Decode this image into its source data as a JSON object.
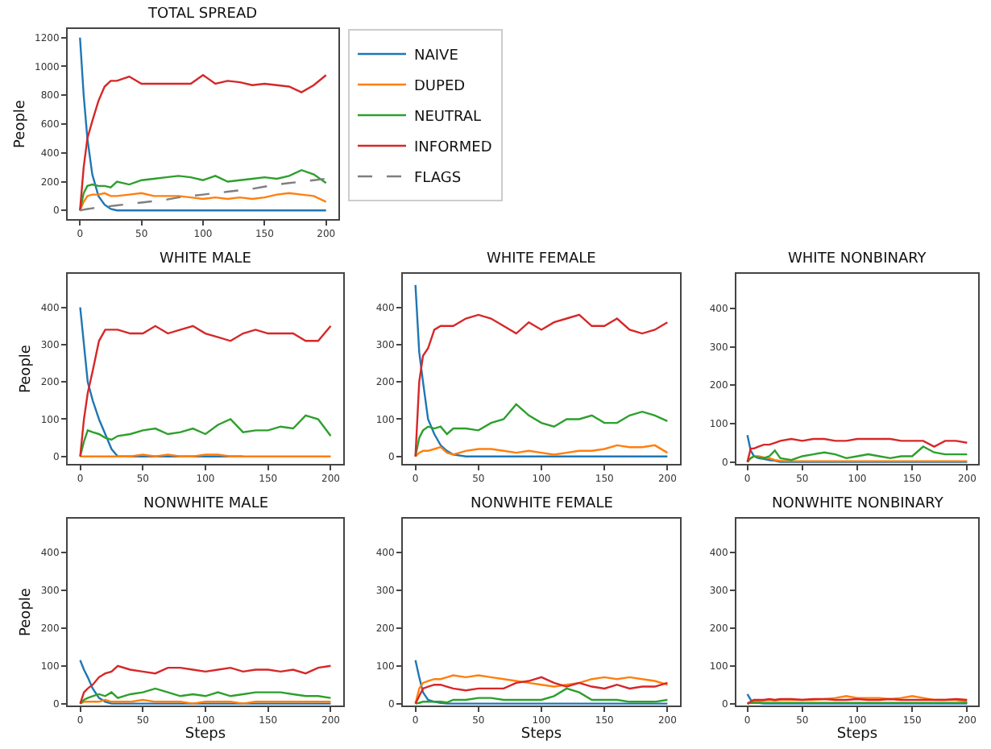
{
  "chart_data": [
    {
      "type": "line",
      "title": "TOTAL SPREAD",
      "ylabel": "People",
      "legend": "right",
      "grid": false,
      "marker": "none",
      "x": [
        0,
        3,
        6,
        10,
        15,
        20,
        25,
        30,
        40,
        50,
        60,
        70,
        80,
        90,
        100,
        110,
        120,
        130,
        140,
        150,
        160,
        170,
        180,
        190,
        200
      ],
      "xlim": [
        -10,
        210
      ],
      "xticks": [
        0,
        50,
        100,
        150,
        200
      ],
      "ylim": [
        -60,
        1260
      ],
      "yticks": [
        0,
        200,
        400,
        600,
        800,
        1000,
        1200
      ],
      "series": [
        {
          "name": "NAIVE",
          "color": "#1f77b4",
          "values": [
            1200,
            800,
            500,
            250,
            100,
            40,
            10,
            0,
            0,
            0,
            0,
            0,
            0,
            0,
            0,
            0,
            0,
            0,
            0,
            0,
            0,
            0,
            0,
            0,
            0
          ]
        },
        {
          "name": "DUPED",
          "color": "#ff7f0e",
          "values": [
            0,
            60,
            100,
            110,
            110,
            120,
            100,
            100,
            110,
            120,
            100,
            100,
            100,
            90,
            80,
            90,
            80,
            90,
            80,
            90,
            110,
            120,
            110,
            100,
            60
          ]
        },
        {
          "name": "NEUTRAL",
          "color": "#2ca02c",
          "values": [
            0,
            120,
            170,
            180,
            170,
            170,
            160,
            200,
            180,
            210,
            220,
            230,
            240,
            230,
            210,
            240,
            200,
            210,
            220,
            230,
            220,
            240,
            280,
            250,
            190
          ]
        },
        {
          "name": "INFORMED",
          "color": "#d62728",
          "values": [
            0,
            300,
            500,
            620,
            760,
            860,
            900,
            900,
            930,
            880,
            880,
            880,
            880,
            880,
            940,
            880,
            900,
            890,
            870,
            880,
            870,
            860,
            820,
            870,
            940
          ]
        },
        {
          "name": "FLAGS",
          "color": "#7f7f7f",
          "line_style": "dashed",
          "values": [
            0,
            5,
            10,
            15,
            20,
            25,
            30,
            35,
            45,
            55,
            65,
            75,
            90,
            100,
            110,
            120,
            130,
            140,
            150,
            165,
            180,
            190,
            200,
            210,
            220
          ]
        }
      ]
    },
    {
      "type": "line",
      "title": "WHITE MALE",
      "ylabel": "People",
      "grid": false,
      "marker": "none",
      "x": [
        0,
        3,
        6,
        10,
        15,
        20,
        25,
        30,
        40,
        50,
        60,
        70,
        80,
        90,
        100,
        110,
        120,
        130,
        140,
        150,
        160,
        170,
        180,
        190,
        200
      ],
      "xlim": [
        -10,
        210
      ],
      "xticks": [
        0,
        50,
        100,
        150,
        200
      ],
      "ylim": [
        -20,
        490
      ],
      "yticks": [
        0,
        100,
        200,
        300,
        400
      ],
      "series": [
        {
          "color": "#1f77b4",
          "values": [
            400,
            300,
            200,
            150,
            100,
            60,
            20,
            0,
            0,
            0,
            0,
            0,
            0,
            0,
            0,
            0,
            0,
            0,
            null,
            null,
            null,
            null,
            null,
            null,
            null
          ]
        },
        {
          "color": "#ff7f0e",
          "values": [
            0,
            0,
            0,
            0,
            0,
            0,
            0,
            0,
            0,
            5,
            0,
            5,
            0,
            0,
            5,
            5,
            0,
            0,
            0,
            0,
            0,
            0,
            0,
            0,
            0
          ]
        },
        {
          "color": "#2ca02c",
          "values": [
            0,
            40,
            70,
            65,
            60,
            50,
            45,
            55,
            60,
            70,
            75,
            60,
            65,
            75,
            60,
            85,
            100,
            65,
            70,
            70,
            80,
            75,
            110,
            100,
            55
          ]
        },
        {
          "color": "#d62728",
          "values": [
            0,
            100,
            170,
            230,
            310,
            340,
            340,
            340,
            330,
            330,
            350,
            330,
            340,
            350,
            330,
            320,
            310,
            330,
            340,
            330,
            330,
            330,
            310,
            310,
            350
          ]
        }
      ]
    },
    {
      "type": "line",
      "title": "WHITE FEMALE",
      "grid": false,
      "marker": "none",
      "x": [
        0,
        3,
        6,
        10,
        15,
        20,
        25,
        30,
        40,
        50,
        60,
        70,
        80,
        90,
        100,
        110,
        120,
        130,
        140,
        150,
        160,
        170,
        180,
        190,
        200
      ],
      "xlim": [
        -10,
        210
      ],
      "xticks": [
        0,
        50,
        100,
        150,
        200
      ],
      "ylim": [
        -20,
        490
      ],
      "yticks": [
        0,
        100,
        200,
        300,
        400
      ],
      "series": [
        {
          "color": "#1f77b4",
          "values": [
            460,
            280,
            200,
            100,
            60,
            30,
            15,
            5,
            0,
            0,
            0,
            0,
            0,
            0,
            0,
            0,
            0,
            0,
            0,
            0,
            0,
            0,
            0,
            0,
            0
          ]
        },
        {
          "color": "#ff7f0e",
          "values": [
            0,
            10,
            15,
            15,
            20,
            25,
            10,
            5,
            15,
            20,
            20,
            15,
            10,
            15,
            10,
            5,
            10,
            15,
            15,
            20,
            30,
            25,
            25,
            30,
            10
          ]
        },
        {
          "color": "#2ca02c",
          "values": [
            0,
            50,
            70,
            80,
            75,
            80,
            60,
            75,
            75,
            70,
            90,
            100,
            140,
            110,
            90,
            80,
            100,
            100,
            110,
            90,
            90,
            110,
            120,
            110,
            95
          ]
        },
        {
          "color": "#d62728",
          "values": [
            0,
            200,
            270,
            290,
            340,
            350,
            350,
            350,
            370,
            380,
            370,
            350,
            330,
            360,
            340,
            360,
            370,
            380,
            350,
            350,
            370,
            340,
            330,
            340,
            360
          ]
        }
      ]
    },
    {
      "type": "line",
      "title": "WHITE NONBINARY",
      "grid": false,
      "marker": "none",
      "x": [
        0,
        3,
        6,
        10,
        15,
        20,
        25,
        30,
        40,
        50,
        60,
        70,
        80,
        90,
        100,
        110,
        120,
        130,
        140,
        150,
        160,
        170,
        180,
        190,
        200
      ],
      "xlim": [
        -10,
        210
      ],
      "xticks": [
        0,
        50,
        100,
        150,
        200
      ],
      "ylim": [
        -5,
        490
      ],
      "yticks": [
        0,
        100,
        200,
        300,
        400
      ],
      "series": [
        {
          "color": "#1f77b4",
          "values": [
            70,
            30,
            15,
            10,
            8,
            5,
            3,
            0,
            0,
            0,
            0,
            0,
            0,
            0,
            0,
            0,
            0,
            0,
            0,
            0,
            0,
            0,
            0,
            0,
            0
          ]
        },
        {
          "color": "#ff7f0e",
          "values": [
            0,
            10,
            15,
            15,
            12,
            10,
            5,
            3,
            2,
            2,
            2,
            2,
            2,
            2,
            2,
            2,
            2,
            2,
            2,
            2,
            2,
            2,
            2,
            2,
            2
          ]
        },
        {
          "color": "#2ca02c",
          "values": [
            0,
            10,
            15,
            12,
            10,
            15,
            30,
            10,
            5,
            15,
            20,
            25,
            20,
            10,
            15,
            20,
            15,
            10,
            15,
            15,
            40,
            25,
            20,
            20,
            20
          ]
        },
        {
          "color": "#d62728",
          "values": [
            0,
            35,
            35,
            40,
            45,
            45,
            50,
            55,
            60,
            55,
            60,
            60,
            55,
            55,
            60,
            60,
            60,
            60,
            55,
            55,
            55,
            40,
            55,
            55,
            50
          ]
        }
      ]
    },
    {
      "type": "line",
      "title": "NONWHITE MALE",
      "ylabel": "People",
      "xlabel": "Steps",
      "grid": false,
      "marker": "none",
      "x": [
        0,
        3,
        6,
        10,
        15,
        20,
        25,
        30,
        40,
        50,
        60,
        70,
        80,
        90,
        100,
        110,
        120,
        130,
        140,
        150,
        160,
        170,
        180,
        190,
        200
      ],
      "xlim": [
        -10,
        210
      ],
      "xticks": [
        0,
        50,
        100,
        150,
        200
      ],
      "ylim": [
        -5,
        490
      ],
      "yticks": [
        0,
        100,
        200,
        300,
        400
      ],
      "series": [
        {
          "color": "#1f77b4",
          "values": [
            115,
            90,
            70,
            40,
            15,
            5,
            0,
            0,
            0,
            0,
            0,
            0,
            0,
            0,
            0,
            0,
            0,
            0,
            0,
            0,
            0,
            0,
            0,
            0,
            0
          ]
        },
        {
          "color": "#ff7f0e",
          "values": [
            0,
            5,
            5,
            5,
            5,
            10,
            5,
            5,
            5,
            10,
            5,
            5,
            5,
            0,
            5,
            5,
            5,
            0,
            5,
            5,
            5,
            5,
            5,
            5,
            5
          ]
        },
        {
          "color": "#2ca02c",
          "values": [
            0,
            10,
            15,
            20,
            25,
            20,
            30,
            15,
            25,
            30,
            40,
            30,
            20,
            25,
            20,
            30,
            20,
            25,
            30,
            30,
            30,
            25,
            20,
            20,
            15
          ]
        },
        {
          "color": "#d62728",
          "values": [
            0,
            30,
            40,
            50,
            70,
            80,
            85,
            100,
            90,
            85,
            80,
            95,
            95,
            90,
            85,
            90,
            95,
            85,
            90,
            90,
            85,
            90,
            80,
            95,
            100
          ]
        }
      ]
    },
    {
      "type": "line",
      "title": "NONWHITE FEMALE",
      "xlabel": "Steps",
      "grid": false,
      "marker": "none",
      "x": [
        0,
        3,
        6,
        10,
        15,
        20,
        25,
        30,
        40,
        50,
        60,
        70,
        80,
        90,
        100,
        110,
        120,
        130,
        140,
        150,
        160,
        170,
        180,
        190,
        200
      ],
      "xlim": [
        -10,
        210
      ],
      "xticks": [
        0,
        50,
        100,
        150,
        200
      ],
      "ylim": [
        -5,
        490
      ],
      "yticks": [
        0,
        100,
        200,
        300,
        400
      ],
      "series": [
        {
          "color": "#1f77b4",
          "values": [
            115,
            70,
            30,
            10,
            5,
            2,
            0,
            0,
            0,
            0,
            0,
            0,
            0,
            0,
            0,
            0,
            0,
            0,
            0,
            0,
            0,
            0,
            0,
            0,
            0
          ]
        },
        {
          "color": "#ff7f0e",
          "values": [
            0,
            40,
            55,
            60,
            65,
            65,
            70,
            75,
            70,
            75,
            70,
            65,
            60,
            55,
            50,
            45,
            50,
            55,
            65,
            70,
            65,
            70,
            65,
            60,
            50
          ]
        },
        {
          "color": "#2ca02c",
          "values": [
            0,
            2,
            5,
            5,
            5,
            5,
            3,
            10,
            10,
            15,
            15,
            10,
            10,
            10,
            10,
            20,
            40,
            30,
            10,
            10,
            10,
            5,
            5,
            5,
            10
          ]
        },
        {
          "color": "#d62728",
          "values": [
            0,
            20,
            40,
            45,
            50,
            50,
            45,
            40,
            35,
            40,
            40,
            40,
            55,
            60,
            70,
            55,
            45,
            55,
            45,
            40,
            50,
            40,
            45,
            45,
            55
          ]
        }
      ]
    },
    {
      "type": "line",
      "title": "NONWHITE NONBINARY",
      "xlabel": "Steps",
      "grid": false,
      "marker": "none",
      "x": [
        0,
        3,
        6,
        10,
        15,
        20,
        25,
        30,
        40,
        50,
        60,
        70,
        80,
        90,
        100,
        110,
        120,
        130,
        140,
        150,
        160,
        170,
        180,
        190,
        200
      ],
      "xlim": [
        -10,
        210
      ],
      "xticks": [
        0,
        50,
        100,
        150,
        200
      ],
      "ylim": [
        -5,
        490
      ],
      "yticks": [
        0,
        100,
        200,
        300,
        400
      ],
      "series": [
        {
          "color": "#1f77b4",
          "values": [
            25,
            10,
            5,
            2,
            0,
            0,
            0,
            0,
            0,
            0,
            0,
            0,
            0,
            0,
            0,
            0,
            0,
            0,
            0,
            0,
            0,
            0,
            0,
            0,
            0
          ]
        },
        {
          "color": "#ff7f0e",
          "values": [
            0,
            3,
            5,
            5,
            8,
            10,
            8,
            10,
            10,
            10,
            10,
            12,
            15,
            20,
            15,
            15,
            15,
            12,
            15,
            20,
            15,
            10,
            10,
            10,
            5
          ]
        },
        {
          "color": "#2ca02c",
          "values": [
            0,
            2,
            2,
            2,
            2,
            2,
            2,
            2,
            2,
            2,
            2,
            2,
            2,
            2,
            2,
            2,
            2,
            2,
            2,
            2,
            2,
            2,
            2,
            2,
            2
          ]
        },
        {
          "color": "#d62728",
          "values": [
            0,
            5,
            10,
            10,
            10,
            12,
            10,
            12,
            12,
            10,
            12,
            12,
            10,
            10,
            12,
            10,
            10,
            12,
            10,
            10,
            10,
            10,
            10,
            12,
            10
          ]
        }
      ]
    }
  ]
}
